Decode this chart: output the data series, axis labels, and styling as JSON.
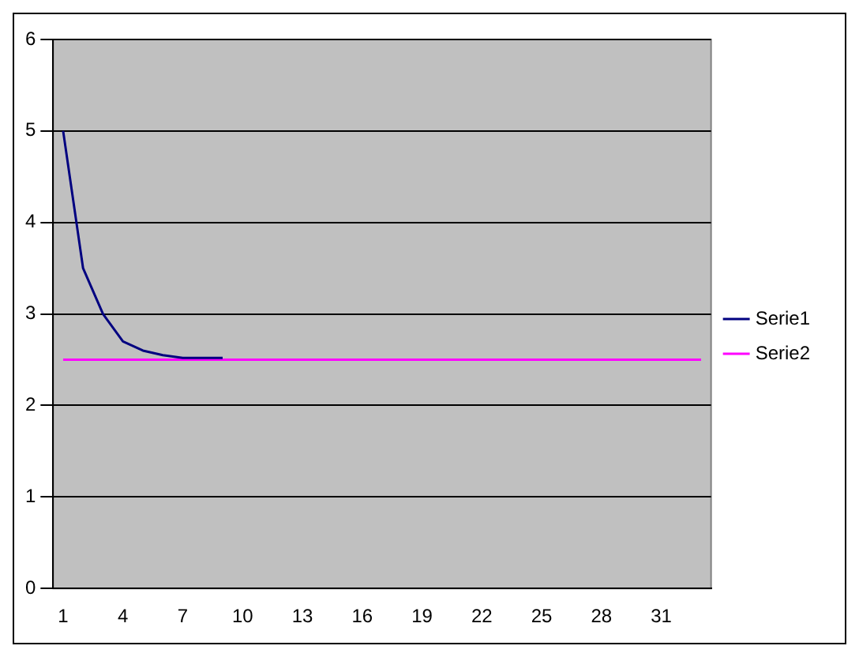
{
  "chart_data": {
    "type": "line",
    "categories": [
      "1",
      null,
      null,
      "4",
      null,
      null,
      "7",
      null,
      null,
      "10",
      null,
      null,
      "13",
      null,
      null,
      "16",
      null,
      null,
      "19",
      null,
      null,
      "22",
      null,
      null,
      "25",
      null,
      null,
      "28",
      null,
      null,
      "31",
      null,
      null
    ],
    "series": [
      {
        "name": "Serie1",
        "color": "#000080",
        "values": [
          5,
          3.5,
          3.0,
          2.7,
          2.6,
          2.55,
          2.52,
          2.52,
          2.52,
          null,
          null,
          null,
          null,
          null,
          null,
          null,
          null,
          null,
          null,
          null,
          null,
          null,
          null,
          null,
          null,
          null,
          null,
          null,
          null,
          null,
          null,
          null,
          null
        ]
      },
      {
        "name": "Serie2",
        "color": "#ff00ff",
        "values": [
          2.5,
          2.5,
          2.5,
          2.5,
          2.5,
          2.5,
          2.5,
          2.5,
          2.5,
          2.5,
          2.5,
          2.5,
          2.5,
          2.5,
          2.5,
          2.5,
          2.5,
          2.5,
          2.5,
          2.5,
          2.5,
          2.5,
          2.5,
          2.5,
          2.5,
          2.5,
          2.5,
          2.5,
          2.5,
          2.5,
          2.5,
          2.5,
          2.5
        ]
      }
    ],
    "ylim": [
      0,
      6
    ],
    "yticks": [
      0,
      1,
      2,
      3,
      4,
      5,
      6
    ],
    "grid": "y",
    "legend": "right",
    "marker": "none",
    "line_style": "solid"
  }
}
